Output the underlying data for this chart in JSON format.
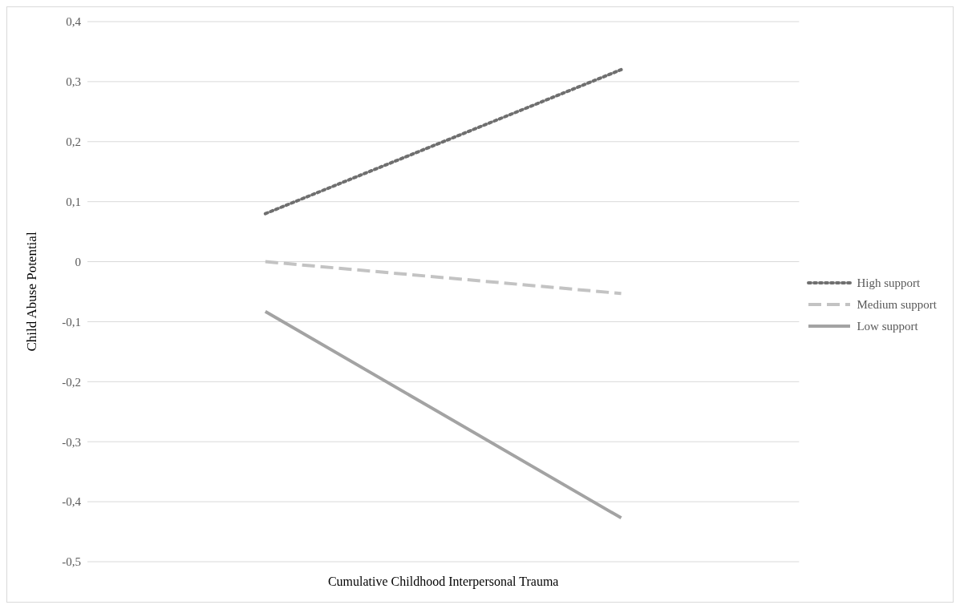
{
  "chart_data": {
    "type": "line",
    "xlabel": "Cumulative Childhood Interpersonal Trauma",
    "ylabel": "Child Abuse Potential",
    "categories": [
      null,
      null
    ],
    "series": [
      {
        "name": "High support",
        "color": "#6f6f6f",
        "line_style": "dotted",
        "values": [
          0.08,
          0.32
        ]
      },
      {
        "name": "Medium support",
        "color": "#c3c3c3",
        "line_style": "dashed",
        "values": [
          0.0,
          -0.053
        ]
      },
      {
        "name": "Low support",
        "color": "#a3a3a3",
        "line_style": "solid",
        "values": [
          -0.083,
          -0.427
        ]
      }
    ],
    "ylim": [
      -0.5,
      0.4
    ],
    "yticks": [
      {
        "value": -0.5,
        "label": "-0,5"
      },
      {
        "value": -0.4,
        "label": "-0,4"
      },
      {
        "value": -0.3,
        "label": "-0,3"
      },
      {
        "value": -0.2,
        "label": "-0,2"
      },
      {
        "value": -0.1,
        "label": "-0,1"
      },
      {
        "value": 0,
        "label": "0"
      },
      {
        "value": 0.1,
        "label": "0,1"
      },
      {
        "value": 0.2,
        "label": "0,2"
      },
      {
        "value": 0.3,
        "label": "0,3"
      },
      {
        "value": 0.4,
        "label": "0,4"
      }
    ],
    "grid": "y",
    "legend": "right",
    "marker": "none"
  }
}
